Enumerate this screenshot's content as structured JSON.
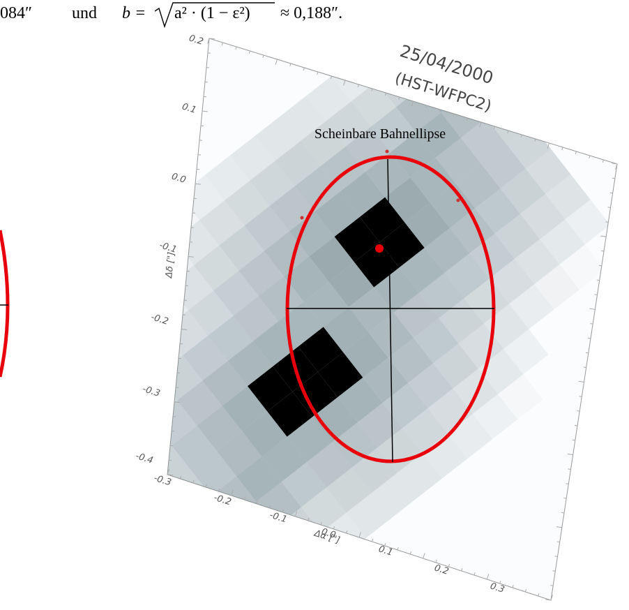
{
  "formula": {
    "prefix": "084″",
    "conjunction": "und",
    "lhs": "b =",
    "radicand": "a² · (1 − ε²)",
    "result": "≈ 0,188″."
  },
  "figure": {
    "date": "25/04/2000",
    "instrument": "(HST-WFPC2)",
    "ellipse_label": "Scheinbare Bahnellipse",
    "y_label": "Δδ [\"]",
    "x_label": "Δα [\"]",
    "y_ticks": [
      "0.2",
      "0.1",
      "0.0",
      "-0.1",
      "-0.2",
      "-0.3",
      "-0.4"
    ],
    "x_ticks": [
      "-0.3",
      "-0.2",
      "-0.1",
      "0.0",
      "0.1",
      "0.2",
      "0.3"
    ]
  }
}
